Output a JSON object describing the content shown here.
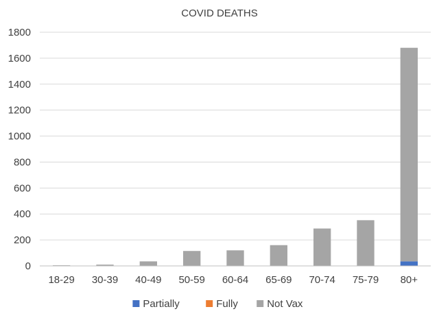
{
  "chart_data": {
    "type": "bar",
    "stacked": true,
    "title": "COVID DEATHS",
    "xlabel": "",
    "ylabel": "",
    "ylim": [
      0,
      1800
    ],
    "yticks": [
      0,
      200,
      400,
      600,
      800,
      1000,
      1200,
      1400,
      1600,
      1800
    ],
    "grid": true,
    "legend_position": "bottom",
    "categories": [
      "18-29",
      "30-39",
      "40-49",
      "50-59",
      "60-64",
      "65-69",
      "70-74",
      "75-79",
      "80+"
    ],
    "series": [
      {
        "name": "Partially",
        "color": "#4472c4",
        "values": [
          0,
          0,
          0,
          0,
          0,
          0,
          0,
          0,
          35
        ]
      },
      {
        "name": "Fully",
        "color": "#ed7d31",
        "values": [
          0,
          0,
          0,
          0,
          0,
          0,
          0,
          0,
          0
        ]
      },
      {
        "name": "Not Vax",
        "color": "#a5a5a5",
        "values": [
          5,
          10,
          35,
          115,
          120,
          160,
          288,
          352,
          1645
        ]
      }
    ]
  }
}
